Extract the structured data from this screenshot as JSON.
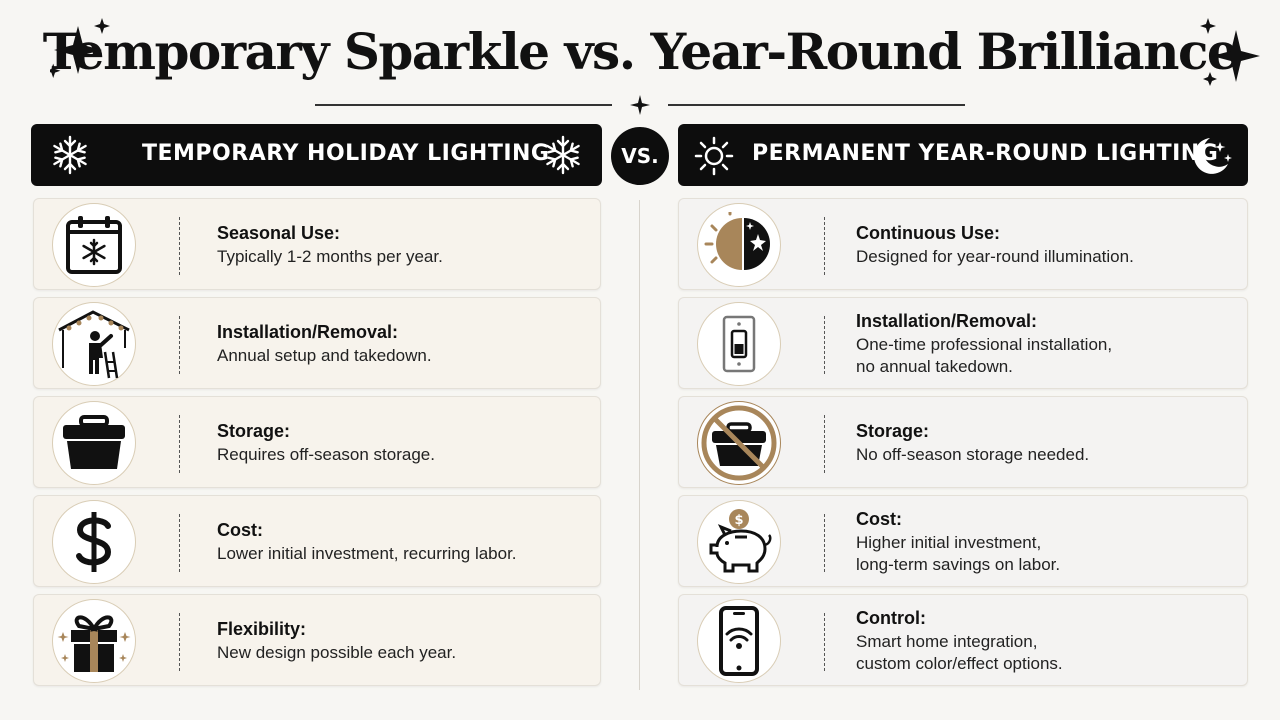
{
  "title": "Temporary Sparkle vs. Year-Round Brilliance",
  "vs_label": "VS.",
  "colors": {
    "dark": "#0d0d0d",
    "gold": "#a8865a",
    "left_card": "#f7f3ec",
    "right_card": "#f4f3f2"
  },
  "left": {
    "header": "TEMPORARY HOLIDAY LIGHTING",
    "header_icons": [
      "snowflake-icon",
      "snowflake-icon"
    ],
    "items": [
      {
        "icon": "calendar-snowflake-icon",
        "title": "Seasonal Use:",
        "desc": "Typically 1-2 months per year."
      },
      {
        "icon": "person-ladder-icon",
        "title": "Installation/Removal:",
        "desc": "Annual setup and takedown."
      },
      {
        "icon": "storage-bin-icon",
        "title": "Storage:",
        "desc": "Requires off-season storage."
      },
      {
        "icon": "dollar-icon",
        "title": "Cost:",
        "desc": "Lower initial investment, recurring labor."
      },
      {
        "icon": "gift-box-icon",
        "title": "Flexibility:",
        "desc": "New design possible each year."
      }
    ]
  },
  "right": {
    "header": "PERMANENT YEAR-ROUND LIGHTING",
    "header_icons": [
      "sun-icon",
      "moon-stars-icon"
    ],
    "items": [
      {
        "icon": "sun-moon-icon",
        "title": "Continuous Use:",
        "desc": "Designed for year-round illumination."
      },
      {
        "icon": "light-switch-icon",
        "title": "Installation/Removal:",
        "desc": "One-time professional installation,\nno annual takedown."
      },
      {
        "icon": "no-storage-icon",
        "title": "Storage:",
        "desc": "No off-season storage needed."
      },
      {
        "icon": "piggy-bank-icon",
        "title": "Cost:",
        "desc": "Higher initial investment,\nlong-term savings on labor."
      },
      {
        "icon": "smartphone-wifi-icon",
        "title": "Control:",
        "desc": "Smart home integration,\ncustom color/effect options."
      }
    ]
  }
}
